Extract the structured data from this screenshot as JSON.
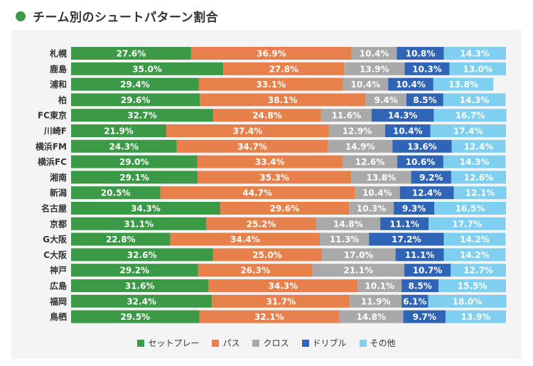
{
  "title": "チーム別のシュートパターン割合",
  "chart_data": {
    "type": "bar",
    "stacked": true,
    "orientation": "horizontal",
    "xlim": [
      0,
      100
    ],
    "categories": [
      "札幌",
      "鹿島",
      "浦和",
      "柏",
      "FC東京",
      "川崎F",
      "横浜FM",
      "横浜FC",
      "湘南",
      "新潟",
      "名古屋",
      "京都",
      "G大阪",
      "C大阪",
      "神戸",
      "広島",
      "福岡",
      "鳥栖"
    ],
    "series": [
      {
        "name": "セットプレー",
        "color": "#3a9a45",
        "values": [
          27.6,
          35.0,
          29.4,
          29.6,
          32.7,
          21.9,
          24.3,
          29.0,
          29.1,
          20.5,
          34.3,
          31.1,
          22.8,
          32.6,
          29.2,
          31.6,
          32.4,
          29.5
        ]
      },
      {
        "name": "パス",
        "color": "#e8804b",
        "values": [
          36.9,
          27.8,
          33.1,
          38.1,
          24.8,
          37.4,
          34.7,
          33.4,
          35.3,
          44.7,
          29.6,
          25.2,
          34.4,
          25.0,
          26.3,
          34.3,
          31.7,
          32.1
        ]
      },
      {
        "name": "クロス",
        "color": "#a9a9a9",
        "values": [
          10.4,
          13.9,
          10.4,
          9.4,
          11.6,
          12.9,
          14.9,
          12.6,
          13.8,
          10.4,
          10.3,
          14.8,
          11.3,
          17.0,
          21.1,
          10.1,
          11.9,
          14.8
        ]
      },
      {
        "name": "ドリブル",
        "color": "#2f64b6",
        "values": [
          10.8,
          10.3,
          10.4,
          8.5,
          14.3,
          10.4,
          13.6,
          10.6,
          9.2,
          12.4,
          9.3,
          11.1,
          17.2,
          11.1,
          10.7,
          8.5,
          6.1,
          9.7
        ]
      },
      {
        "name": "その他",
        "color": "#7fd0f0",
        "values": [
          14.3,
          13.0,
          13.8,
          14.3,
          16.7,
          17.4,
          12.4,
          14.3,
          12.6,
          12.1,
          16.5,
          17.7,
          14.2,
          14.2,
          12.7,
          15.5,
          18.0,
          13.9
        ]
      }
    ]
  }
}
